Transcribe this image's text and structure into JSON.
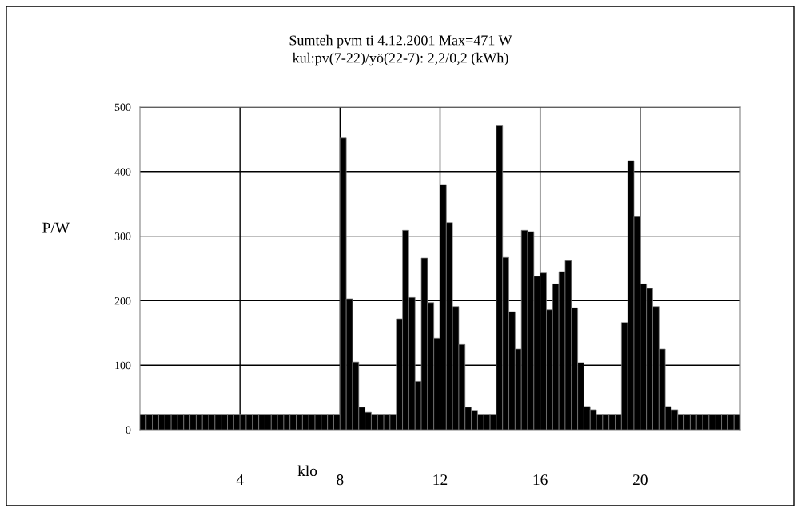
{
  "chart_data": {
    "type": "bar",
    "title": "Sumteh pvm ti 4.12.2001 Max=471 W",
    "subtitle": "kul:pv(7-22)/yö(22-7): 2,2/0,2 (kWh)",
    "xlabel": "klo",
    "ylabel": "P/W",
    "x": [
      0.125,
      0.375,
      0.625,
      0.875,
      1.125,
      1.375,
      1.625,
      1.875,
      2.125,
      2.375,
      2.625,
      2.875,
      3.125,
      3.375,
      3.625,
      3.875,
      4.125,
      4.375,
      4.625,
      4.875,
      5.125,
      5.375,
      5.625,
      5.875,
      6.125,
      6.375,
      6.625,
      6.875,
      7.125,
      7.375,
      7.625,
      7.875,
      8.125,
      8.375,
      8.625,
      8.875,
      9.125,
      9.375,
      9.625,
      9.875,
      10.125,
      10.375,
      10.625,
      10.875,
      11.125,
      11.375,
      11.625,
      11.875,
      12.125,
      12.375,
      12.625,
      12.875,
      13.125,
      13.375,
      13.625,
      13.875,
      14.125,
      14.375,
      14.625,
      14.875,
      15.125,
      15.375,
      15.625,
      15.875,
      16.125,
      16.375,
      16.625,
      16.875,
      17.125,
      17.375,
      17.625,
      17.875,
      18.125,
      18.375,
      18.625,
      18.875,
      19.125,
      19.375,
      19.625,
      19.875,
      20.125,
      20.375,
      20.625,
      20.875,
      21.125,
      21.375,
      21.625,
      21.875,
      22.125,
      22.375,
      22.625,
      22.875,
      23.125,
      23.375,
      23.625,
      23.875
    ],
    "values": [
      24,
      24,
      24,
      24,
      24,
      24,
      24,
      24,
      24,
      24,
      24,
      24,
      24,
      24,
      24,
      24,
      24,
      24,
      24,
      24,
      24,
      24,
      24,
      24,
      24,
      24,
      24,
      24,
      24,
      24,
      24,
      24,
      452,
      203,
      105,
      35,
      27,
      24,
      24,
      24,
      24,
      172,
      309,
      205,
      75,
      266,
      197,
      142,
      380,
      321,
      191,
      132,
      35,
      30,
      24,
      24,
      24,
      471,
      267,
      183,
      125,
      309,
      307,
      238,
      243,
      186,
      226,
      245,
      262,
      189,
      104,
      36,
      31,
      24,
      24,
      24,
      24,
      166,
      417,
      330,
      226,
      219,
      191,
      125,
      36,
      31,
      24,
      24,
      24,
      24,
      24,
      24,
      24,
      24,
      24,
      24
    ],
    "color": "#000000",
    "xlim": [
      0,
      24
    ],
    "xticks": [
      4,
      8,
      12,
      16,
      20
    ],
    "ylim": [
      0,
      500
    ],
    "yticks": [
      0,
      100,
      200,
      300,
      400,
      500
    ],
    "grid": true
  }
}
